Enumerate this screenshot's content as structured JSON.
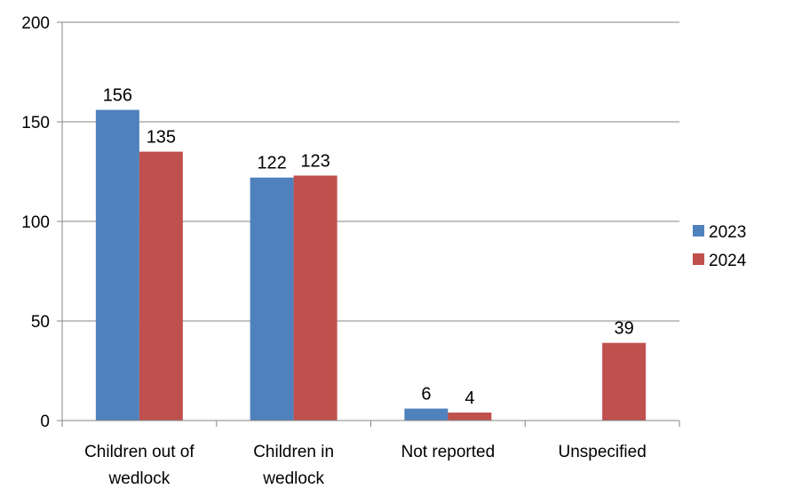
{
  "chart_data": {
    "type": "bar",
    "title": "",
    "xlabel": "",
    "ylabel": "",
    "categories": [
      [
        "Children out of",
        "wedlock"
      ],
      [
        "Children in",
        "wedlock"
      ],
      [
        "Not reported"
      ],
      [
        "Unspecified"
      ]
    ],
    "series": [
      {
        "name": "2023",
        "color": "#4F81BD",
        "values": [
          156,
          122,
          6,
          null
        ],
        "labels": [
          "156",
          "122",
          "6",
          null
        ]
      },
      {
        "name": "2024",
        "color": "#C0504D",
        "values": [
          135,
          123,
          4,
          39
        ],
        "labels": [
          "135",
          "123",
          "4",
          "39"
        ]
      }
    ],
    "ylim": [
      0,
      200
    ],
    "yticks": [
      "0",
      "50",
      "100",
      "150",
      "200"
    ],
    "grid": true,
    "legend_position": "right"
  }
}
